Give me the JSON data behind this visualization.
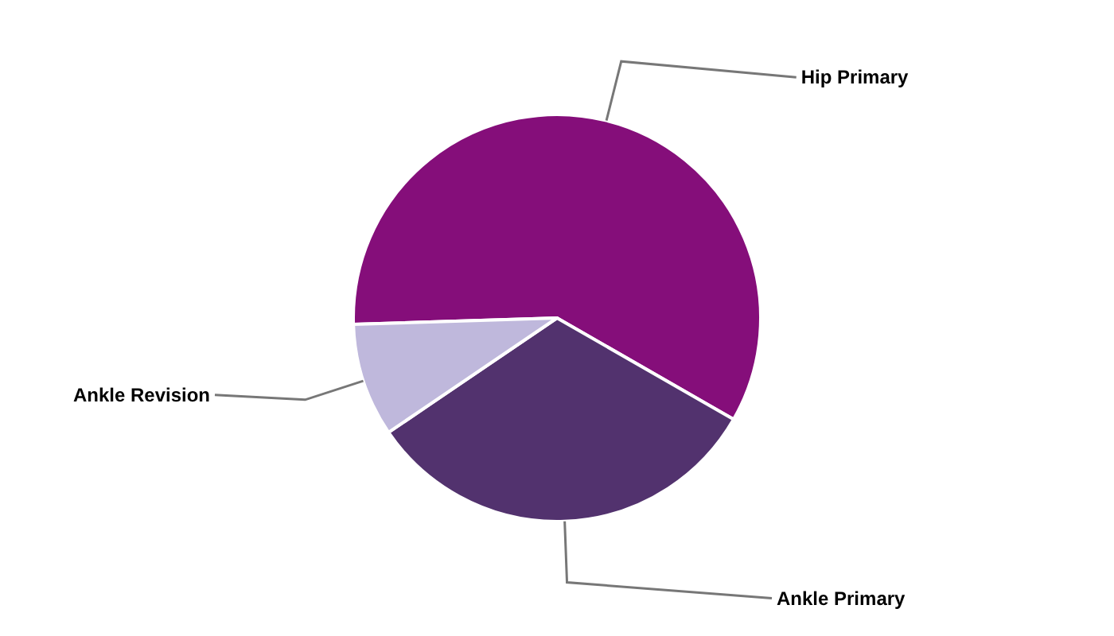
{
  "chart_data": {
    "type": "pie",
    "categories": [
      "Hip Primary",
      "Ankle Primary",
      "Ankle Revision"
    ],
    "values": [
      58.8,
      32.2,
      9.0
    ],
    "colors": [
      "#850e7a",
      "#52326e",
      "#bfb8dc"
    ]
  }
}
